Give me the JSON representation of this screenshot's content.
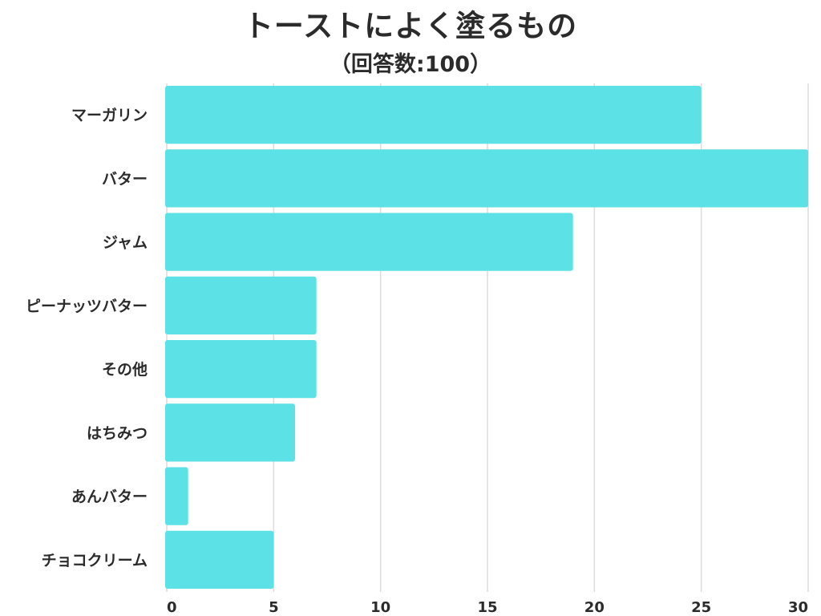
{
  "chart_data": {
    "type": "bar",
    "orientation": "horizontal",
    "title": "トーストによく塗るもの",
    "subtitle": "（回答数:100）",
    "xlabel": "",
    "ylabel": "",
    "categories": [
      "マーガリン",
      "バター",
      "ジャム",
      "ピーナッツバター",
      "その他",
      "はちみつ",
      "あんバター",
      "チョコクリーム"
    ],
    "values": [
      25,
      30,
      19,
      7,
      7,
      6,
      1,
      5
    ],
    "xlim": [
      0,
      30
    ],
    "xticks": [
      "0",
      "5",
      "10",
      "15",
      "20",
      "25",
      "30"
    ],
    "grid": true,
    "bar_color": "#5ce1e6",
    "grid_color": "#dcdcdc"
  }
}
